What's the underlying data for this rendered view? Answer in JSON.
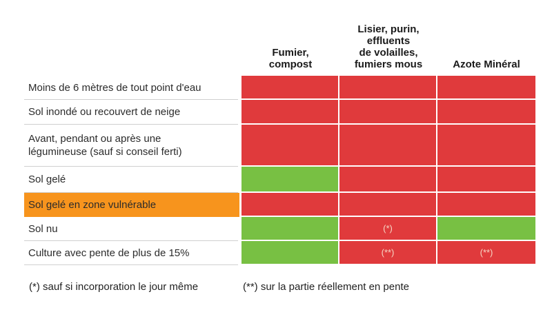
{
  "colors": {
    "forbidden": "#e03a3c",
    "allowed": "#78c043",
    "highlight": "#f7941d"
  },
  "columns": [
    "Fumier,\ncompost",
    "Lisier, purin,\neffluents\nde volailles,\nfumiers mous",
    "Azote Minéral"
  ],
  "rows": [
    {
      "label": "Moins de 6 mètres de tout point d'eau",
      "cells": [
        {
          "status": "forbidden",
          "note": ""
        },
        {
          "status": "forbidden",
          "note": ""
        },
        {
          "status": "forbidden",
          "note": ""
        }
      ]
    },
    {
      "label": "Sol inondé ou recouvert de neige",
      "cells": [
        {
          "status": "forbidden",
          "note": ""
        },
        {
          "status": "forbidden",
          "note": ""
        },
        {
          "status": "forbidden",
          "note": ""
        }
      ]
    },
    {
      "label": "Avant, pendant ou après une\nlégumineuse (sauf si conseil ferti)",
      "cells": [
        {
          "status": "forbidden",
          "note": ""
        },
        {
          "status": "forbidden",
          "note": ""
        },
        {
          "status": "forbidden",
          "note": ""
        }
      ]
    },
    {
      "label": "Sol gelé",
      "cells": [
        {
          "status": "allowed",
          "note": ""
        },
        {
          "status": "forbidden",
          "note": ""
        },
        {
          "status": "forbidden",
          "note": ""
        }
      ]
    },
    {
      "label": "Sol gelé en zone vulnérable",
      "highlight": true,
      "cells": [
        {
          "status": "forbidden",
          "note": ""
        },
        {
          "status": "forbidden",
          "note": ""
        },
        {
          "status": "forbidden",
          "note": ""
        }
      ]
    },
    {
      "label": "Sol nu",
      "cells": [
        {
          "status": "allowed",
          "note": ""
        },
        {
          "status": "forbidden",
          "note": "(*)"
        },
        {
          "status": "allowed",
          "note": ""
        }
      ]
    },
    {
      "label": "Culture avec pente de plus de 15%",
      "cells": [
        {
          "status": "allowed",
          "note": ""
        },
        {
          "status": "forbidden",
          "note": "(**)"
        },
        {
          "status": "forbidden",
          "note": "(**)"
        }
      ]
    }
  ],
  "footnotes": [
    "(*) sauf si incorporation le jour même",
    "(**) sur la partie réellement en pente"
  ]
}
